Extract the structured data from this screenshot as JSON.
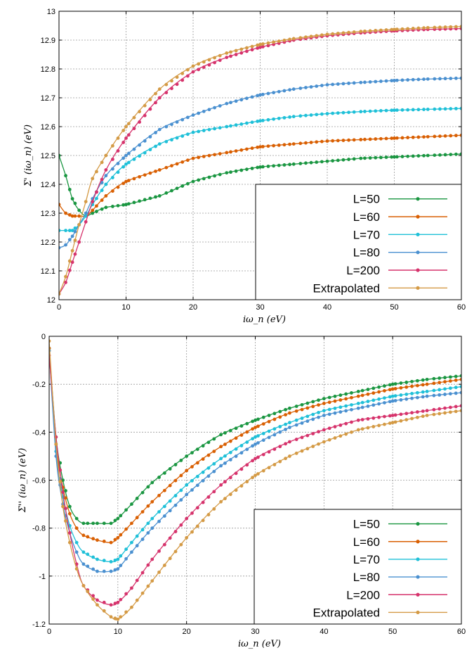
{
  "chart_data": [
    {
      "type": "line",
      "xlabel": "iω_n (eV)",
      "ylabel": "Σ' (iω_n) (eV)",
      "xlim": [
        0,
        60
      ],
      "ylim": [
        12.0,
        13.0
      ],
      "xticks": [
        "0",
        "10",
        "20",
        "30",
        "40",
        "50",
        "60"
      ],
      "yticks": [
        "12",
        "12.1",
        "12.2",
        "12.3",
        "12.4",
        "12.5",
        "12.6",
        "12.7",
        "12.8",
        "12.9",
        "13"
      ],
      "grid": true,
      "legend_position": "bottom-right",
      "series": [
        {
          "name": "L=50",
          "color": "#1a9641",
          "x": [
            0,
            1,
            2,
            3,
            4,
            5,
            7,
            10,
            15,
            20,
            25,
            30,
            35,
            40,
            45,
            50,
            55,
            60
          ],
          "y": [
            12.5,
            12.43,
            12.35,
            12.31,
            12.29,
            12.3,
            12.32,
            12.33,
            12.36,
            12.41,
            12.44,
            12.46,
            12.47,
            12.48,
            12.49,
            12.495,
            12.5,
            12.505
          ]
        },
        {
          "name": "L=60",
          "color": "#d95f02",
          "x": [
            0,
            1,
            2,
            3,
            4,
            5,
            7,
            10,
            15,
            20,
            25,
            30,
            35,
            40,
            45,
            50,
            55,
            60
          ],
          "y": [
            12.33,
            12.3,
            12.29,
            12.29,
            12.29,
            12.31,
            12.36,
            12.41,
            12.45,
            12.49,
            12.51,
            12.53,
            12.54,
            12.55,
            12.555,
            12.56,
            12.565,
            12.57
          ]
        },
        {
          "name": "L=70",
          "color": "#1fc0d8",
          "x": [
            0,
            1,
            2,
            3,
            4,
            5,
            7,
            10,
            15,
            20,
            25,
            30,
            35,
            40,
            45,
            50,
            55,
            60
          ],
          "y": [
            12.24,
            12.24,
            12.24,
            12.26,
            12.29,
            12.33,
            12.4,
            12.47,
            12.54,
            12.58,
            12.6,
            12.62,
            12.635,
            12.645,
            12.652,
            12.657,
            12.66,
            12.663
          ]
        },
        {
          "name": "L=80",
          "color": "#4a90d0",
          "x": [
            0,
            1,
            2,
            3,
            4,
            5,
            7,
            10,
            15,
            20,
            25,
            30,
            35,
            40,
            45,
            50,
            55,
            60
          ],
          "y": [
            12.18,
            12.19,
            12.22,
            12.26,
            12.3,
            12.35,
            12.43,
            12.5,
            12.59,
            12.64,
            12.68,
            12.71,
            12.73,
            12.745,
            12.753,
            12.76,
            12.765,
            12.768
          ]
        },
        {
          "name": "L=200",
          "color": "#d6336c",
          "x": [
            0,
            1,
            2,
            3,
            4,
            5,
            7,
            10,
            15,
            20,
            25,
            30,
            35,
            40,
            45,
            50,
            55,
            60
          ],
          "y": [
            12.02,
            12.06,
            12.13,
            12.2,
            12.27,
            12.34,
            12.45,
            12.56,
            12.7,
            12.79,
            12.84,
            12.875,
            12.9,
            12.915,
            12.925,
            12.932,
            12.937,
            12.94
          ]
        },
        {
          "name": "Extrapolated",
          "color": "#d49a45",
          "x": [
            0,
            1,
            2,
            3,
            4,
            5,
            7,
            10,
            15,
            20,
            25,
            30,
            35,
            40,
            45,
            50,
            55,
            60
          ],
          "y": [
            12.02,
            12.08,
            12.17,
            12.26,
            12.34,
            12.42,
            12.5,
            12.6,
            12.73,
            12.81,
            12.855,
            12.885,
            12.905,
            12.92,
            12.93,
            12.937,
            12.943,
            12.947
          ]
        }
      ]
    },
    {
      "type": "line",
      "xlabel": "iω_n (eV)",
      "ylabel": "Σ'' (iω_n) (eV)",
      "xlim": [
        0,
        60
      ],
      "ylim": [
        -1.2,
        0
      ],
      "xticks": [
        "0",
        "10",
        "20",
        "30",
        "40",
        "50",
        "60"
      ],
      "yticks": [
        "-1.2",
        "-1",
        "-0.8",
        "-0.6",
        "-0.4",
        "-0.2",
        "0"
      ],
      "grid": true,
      "legend_position": "bottom-right",
      "series": [
        {
          "name": "L=50",
          "color": "#1a9641",
          "x": [
            0,
            1,
            2,
            3,
            4,
            5,
            7,
            9,
            10,
            12,
            15,
            20,
            25,
            30,
            35,
            40,
            45,
            50,
            55,
            60
          ],
          "y": [
            -0.05,
            -0.42,
            -0.6,
            -0.71,
            -0.76,
            -0.78,
            -0.78,
            -0.78,
            -0.76,
            -0.7,
            -0.61,
            -0.5,
            -0.41,
            -0.35,
            -0.3,
            -0.26,
            -0.23,
            -0.2,
            -0.18,
            -0.165
          ]
        },
        {
          "name": "L=60",
          "color": "#d95f02",
          "x": [
            0,
            1,
            2,
            3,
            4,
            5,
            7,
            9,
            10,
            12,
            15,
            20,
            25,
            30,
            35,
            40,
            45,
            50,
            55,
            60
          ],
          "y": [
            -0.05,
            -0.45,
            -0.63,
            -0.74,
            -0.8,
            -0.83,
            -0.85,
            -0.86,
            -0.84,
            -0.78,
            -0.69,
            -0.56,
            -0.46,
            -0.38,
            -0.32,
            -0.28,
            -0.25,
            -0.22,
            -0.2,
            -0.18
          ]
        },
        {
          "name": "L=70",
          "color": "#1fc0d8",
          "x": [
            0,
            1,
            2,
            3,
            4,
            5,
            7,
            9,
            10,
            12,
            15,
            20,
            25,
            30,
            35,
            40,
            45,
            50,
            55,
            60
          ],
          "y": [
            -0.06,
            -0.48,
            -0.67,
            -0.79,
            -0.86,
            -0.9,
            -0.93,
            -0.94,
            -0.93,
            -0.86,
            -0.76,
            -0.62,
            -0.51,
            -0.42,
            -0.36,
            -0.31,
            -0.28,
            -0.25,
            -0.23,
            -0.21
          ]
        },
        {
          "name": "L=80",
          "color": "#4a90d0",
          "x": [
            0,
            1,
            2,
            3,
            4,
            5,
            7,
            9,
            10,
            12,
            15,
            20,
            25,
            30,
            35,
            40,
            45,
            50,
            55,
            60
          ],
          "y": [
            -0.06,
            -0.5,
            -0.7,
            -0.82,
            -0.9,
            -0.95,
            -0.98,
            -0.98,
            -0.97,
            -0.9,
            -0.8,
            -0.66,
            -0.54,
            -0.45,
            -0.38,
            -0.33,
            -0.3,
            -0.27,
            -0.25,
            -0.235
          ]
        },
        {
          "name": "L=200",
          "color": "#d6336c",
          "x": [
            0,
            1,
            2,
            3,
            4,
            5,
            7,
            9,
            10,
            12,
            15,
            20,
            25,
            30,
            35,
            40,
            45,
            50,
            55,
            60
          ],
          "y": [
            -0.08,
            -0.42,
            -0.65,
            -0.82,
            -0.95,
            -1.04,
            -1.1,
            -1.12,
            -1.11,
            -1.05,
            -0.93,
            -0.76,
            -0.62,
            -0.51,
            -0.44,
            -0.39,
            -0.35,
            -0.33,
            -0.31,
            -0.29
          ]
        },
        {
          "name": "Extrapolated",
          "color": "#d49a45",
          "x": [
            0,
            1,
            2,
            3,
            4,
            5,
            7,
            9,
            10,
            12,
            15,
            20,
            25,
            30,
            35,
            40,
            45,
            50,
            55,
            60
          ],
          "y": [
            -0.02,
            -0.45,
            -0.71,
            -0.86,
            -0.97,
            -1.04,
            -1.12,
            -1.17,
            -1.18,
            -1.13,
            -1.02,
            -0.84,
            -0.69,
            -0.58,
            -0.5,
            -0.44,
            -0.39,
            -0.36,
            -0.33,
            -0.31
          ]
        }
      ]
    }
  ]
}
